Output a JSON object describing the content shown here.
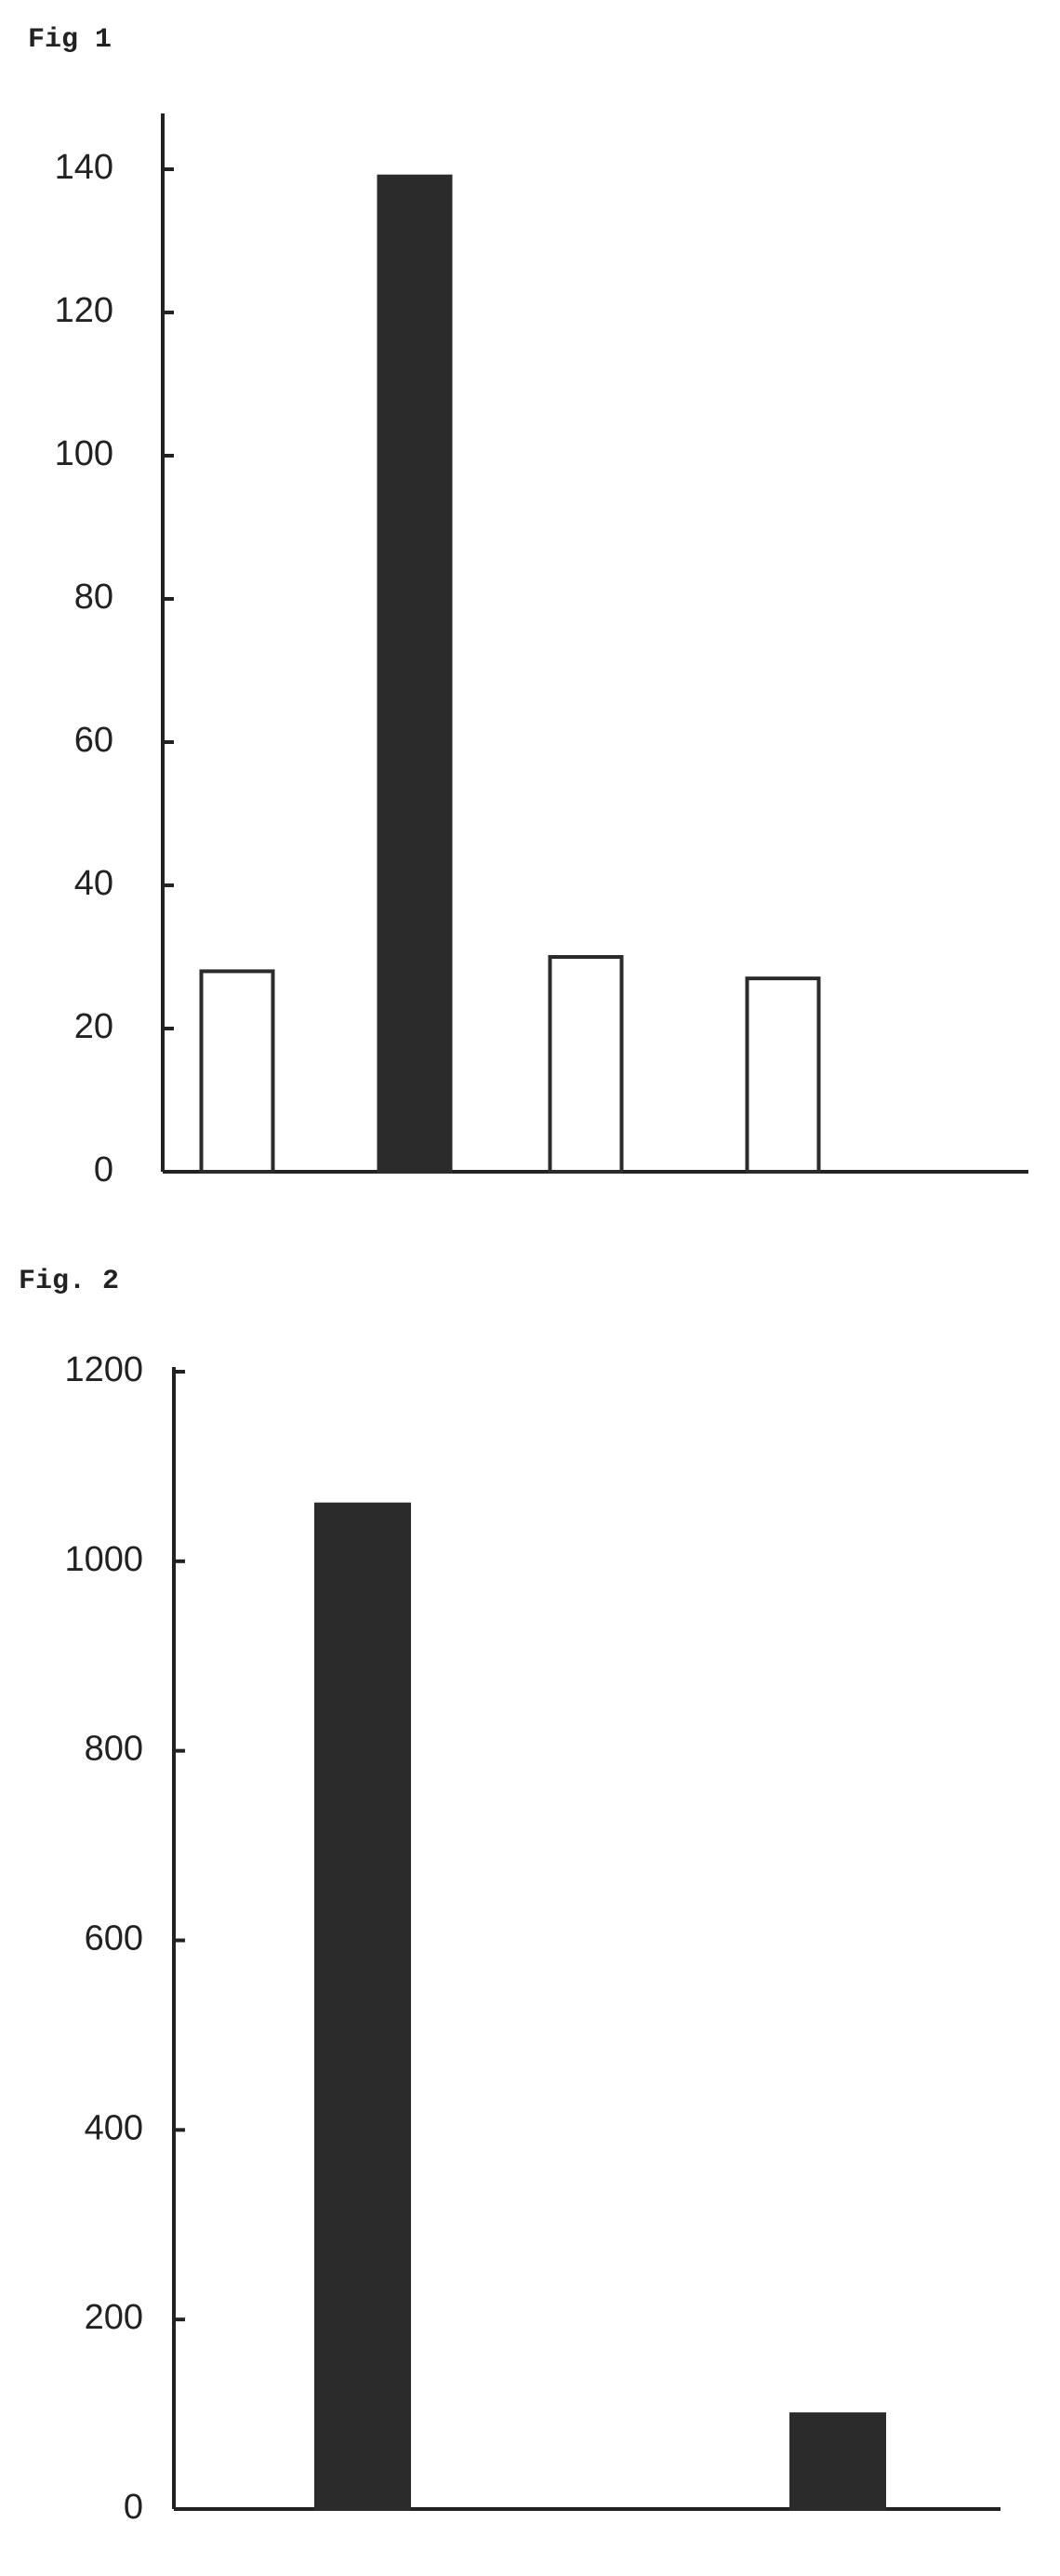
{
  "chart_data": [
    {
      "type": "bar",
      "title": "Fig  1",
      "categories": [
        null,
        null,
        null,
        null
      ],
      "values": [
        28,
        139,
        30,
        27
      ],
      "colors": [
        "#ffffff",
        "#2b2b2b",
        "#ffffff",
        "#ffffff"
      ],
      "ylim": [
        0,
        140
      ],
      "yticks": [
        0,
        20,
        40,
        60,
        80,
        100,
        120,
        140
      ]
    },
    {
      "type": "bar",
      "title": "Fig. 2",
      "categories": [
        null,
        null
      ],
      "values": [
        1060,
        100
      ],
      "colors": [
        "#2b2b2b",
        "#2b2b2b"
      ],
      "ylim": [
        0,
        1200
      ],
      "yticks": [
        0,
        200,
        400,
        600,
        800,
        1000,
        1200
      ]
    }
  ]
}
